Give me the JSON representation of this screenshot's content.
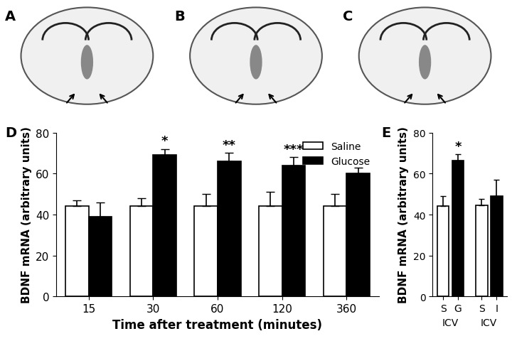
{
  "panel_labels": [
    "A",
    "B",
    "C",
    "D",
    "E"
  ],
  "chart_data": [
    {
      "type": "bar",
      "x_label": "Time after treatment (minutes)",
      "y_label": "BDNF mRNA (arbitrary units)",
      "categories": [
        "15",
        "30",
        "60",
        "120",
        "360"
      ],
      "series": [
        {
          "name": "Saline",
          "color": "#ffffff",
          "values": [
            44,
            44,
            44,
            44,
            44
          ],
          "errors": [
            3,
            4,
            6,
            7,
            6
          ]
        },
        {
          "name": "Glucose",
          "color": "#000000",
          "values": [
            39,
            69,
            66,
            64,
            60
          ],
          "errors": [
            7,
            3,
            4,
            4,
            3
          ],
          "significance": [
            null,
            "*",
            "**",
            "***",
            null
          ]
        }
      ],
      "ylim": [
        0,
        80
      ],
      "yticks": [
        0,
        20,
        40,
        60,
        80
      ],
      "legend": "upper right"
    },
    {
      "type": "bar",
      "y_label": "BDNF mRNA (arbitrary units)",
      "categories": [
        "S",
        "G",
        "S",
        "I"
      ],
      "group_labels": [
        "ICV",
        "ICV"
      ],
      "values": [
        44,
        66.5,
        44.5,
        49
      ],
      "errors": [
        5,
        3,
        3,
        8
      ],
      "colors": [
        "#ffffff",
        "#000000",
        "#ffffff",
        "#000000"
      ],
      "significance": [
        null,
        "*",
        null,
        null
      ],
      "ylim": [
        0,
        80
      ],
      "yticks": [
        0,
        20,
        40,
        60,
        80
      ]
    }
  ]
}
